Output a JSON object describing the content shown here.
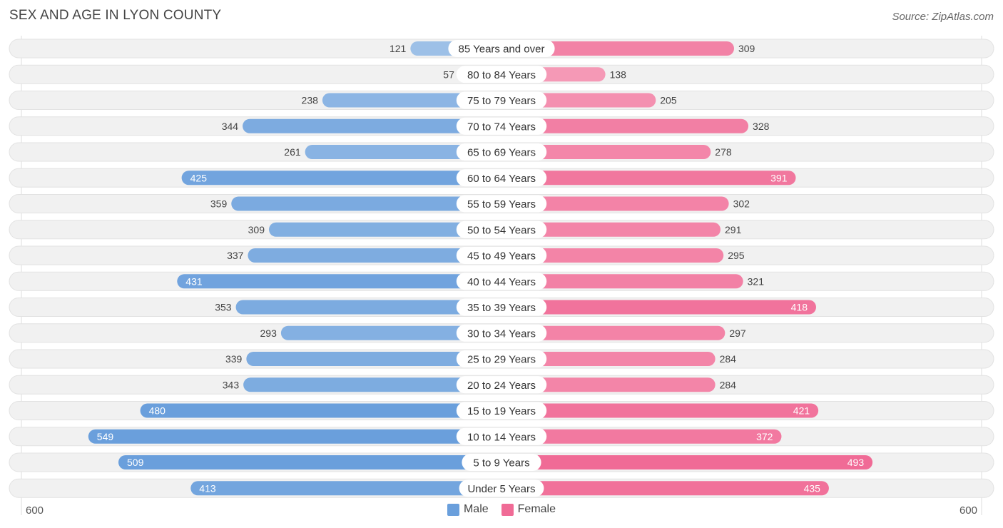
{
  "title": "SEX AND AGE IN LYON COUNTY",
  "source": "Source: ZipAtlas.com",
  "colors": {
    "male": "#6a9fdc",
    "male_light": "#aecbeb",
    "female": "#f06b96",
    "female_light": "#f7abc3",
    "row_bg": "#f1f1f1"
  },
  "legend": {
    "male": "Male",
    "female": "Female"
  },
  "axis": {
    "left_label": "600",
    "right_label": "600"
  },
  "chart_data": {
    "type": "bar",
    "orientation": "horizontal-diverging",
    "title": "SEX AND AGE IN LYON COUNTY",
    "categories": [
      "85 Years and over",
      "80 to 84 Years",
      "75 to 79 Years",
      "70 to 74 Years",
      "65 to 69 Years",
      "60 to 64 Years",
      "55 to 59 Years",
      "50 to 54 Years",
      "45 to 49 Years",
      "40 to 44 Years",
      "35 to 39 Years",
      "30 to 34 Years",
      "25 to 29 Years",
      "20 to 24 Years",
      "15 to 19 Years",
      "10 to 14 Years",
      "5 to 9 Years",
      "Under 5 Years"
    ],
    "series": [
      {
        "name": "Male",
        "values": [
          121,
          57,
          238,
          344,
          261,
          425,
          359,
          309,
          337,
          431,
          353,
          293,
          339,
          343,
          480,
          549,
          509,
          413
        ]
      },
      {
        "name": "Female",
        "values": [
          309,
          138,
          205,
          328,
          278,
          391,
          302,
          291,
          295,
          321,
          418,
          297,
          284,
          284,
          421,
          372,
          493,
          435
        ]
      }
    ],
    "xlim": [
      -600,
      600
    ],
    "legend_position": "bottom-center"
  }
}
